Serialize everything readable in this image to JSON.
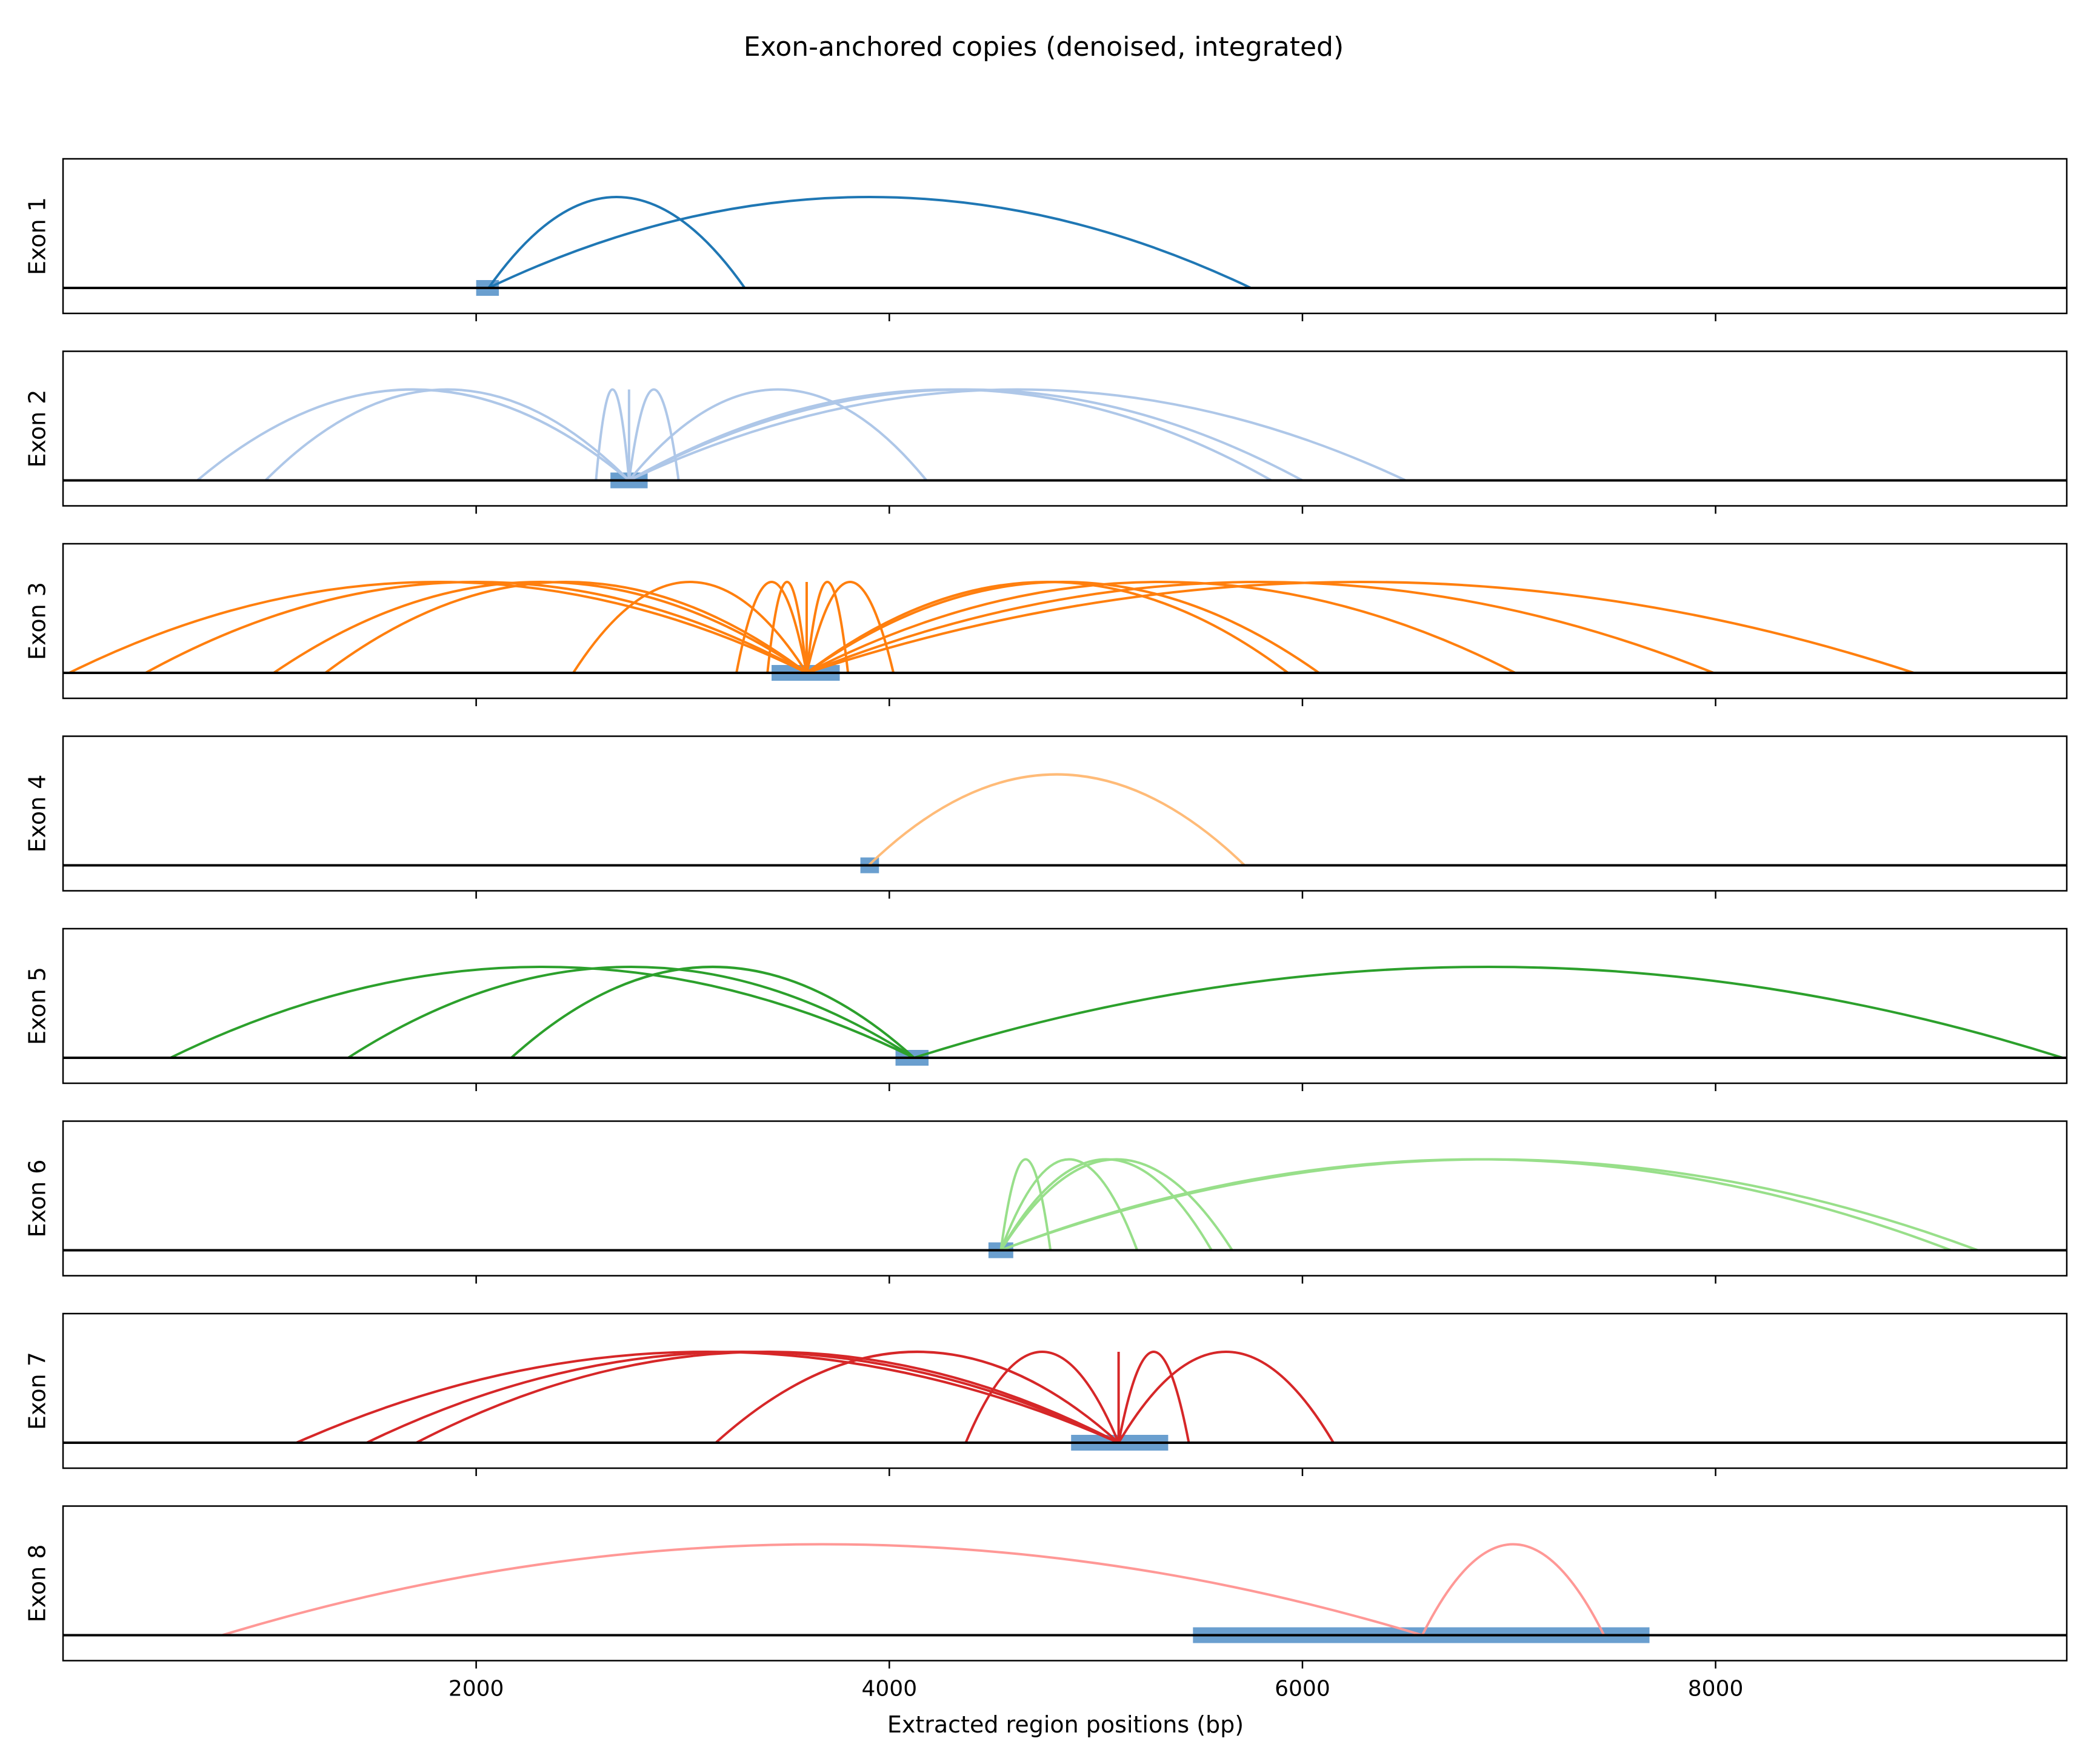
{
  "chart_data": {
    "type": "arc",
    "title": "Exon-anchored copies (denoised, integrated)",
    "xlabel": "Extracted region positions (bp)",
    "xlim": [
      0,
      9700
    ],
    "x_ticks": [
      2000,
      4000,
      6000,
      8000
    ],
    "x_tick_labels": [
      "2000",
      "4000",
      "6000",
      "8000"
    ],
    "anchor_color": "#6a9fcf",
    "baseline_color": "#000000",
    "panels": [
      {
        "label": "Exon 1",
        "color": "#1f77b4",
        "anchor": [
          2000,
          2110
        ],
        "arcs": [
          [
            2060,
            3300
          ],
          [
            2060,
            5750
          ]
        ]
      },
      {
        "label": "Exon 2",
        "color": "#aec7e8",
        "anchor": [
          2650,
          2830
        ],
        "arcs": [
          [
            650,
            2740
          ],
          [
            980,
            2740
          ],
          [
            2580,
            2740
          ],
          [
            2740,
            2740
          ],
          [
            2740,
            2980
          ],
          [
            2740,
            4180
          ],
          [
            2740,
            5850
          ],
          [
            2740,
            6000
          ],
          [
            2740,
            6500
          ]
        ]
      },
      {
        "label": "Exon 3",
        "color": "#ff7f0e",
        "anchor": [
          3430,
          3760
        ],
        "arcs": [
          [
            30,
            3600
          ],
          [
            400,
            3600
          ],
          [
            1020,
            3600
          ],
          [
            1270,
            3600
          ],
          [
            2470,
            3600
          ],
          [
            3260,
            3600
          ],
          [
            3410,
            3600
          ],
          [
            3600,
            3600
          ],
          [
            3600,
            3800
          ],
          [
            3600,
            4020
          ],
          [
            3600,
            5930
          ],
          [
            3600,
            6080
          ],
          [
            3600,
            7030
          ],
          [
            3600,
            7990
          ],
          [
            3600,
            8960
          ]
        ]
      },
      {
        "label": "Exon 4",
        "color": "#ffbb78",
        "anchor": [
          3860,
          3950
        ],
        "arcs": [
          [
            3900,
            5720
          ]
        ]
      },
      {
        "label": "Exon 5",
        "color": "#2ca02c",
        "anchor": [
          4030,
          4190
        ],
        "arcs": [
          [
            520,
            4120
          ],
          [
            1380,
            4120
          ],
          [
            2170,
            4120
          ],
          [
            4120,
            9680
          ]
        ]
      },
      {
        "label": "Exon 6",
        "color": "#98df8a",
        "anchor": [
          4480,
          4600
        ],
        "arcs": [
          [
            4540,
            4780
          ],
          [
            4540,
            5200
          ],
          [
            4540,
            5560
          ],
          [
            4540,
            5660
          ],
          [
            4540,
            9140
          ],
          [
            4540,
            9270
          ]
        ]
      },
      {
        "label": "Exon 7",
        "color": "#d62728",
        "anchor": [
          4880,
          5350
        ],
        "arcs": [
          [
            1130,
            5110
          ],
          [
            1470,
            5110
          ],
          [
            1710,
            5110
          ],
          [
            3160,
            5110
          ],
          [
            4370,
            5110
          ],
          [
            5110,
            5110
          ],
          [
            5110,
            5450
          ],
          [
            5110,
            6150
          ]
        ]
      },
      {
        "label": "Exon 8",
        "color": "#ff9896",
        "anchor": [
          5470,
          7680
        ],
        "arcs": [
          [
            770,
            6580
          ],
          [
            6580,
            7460
          ]
        ]
      }
    ]
  }
}
